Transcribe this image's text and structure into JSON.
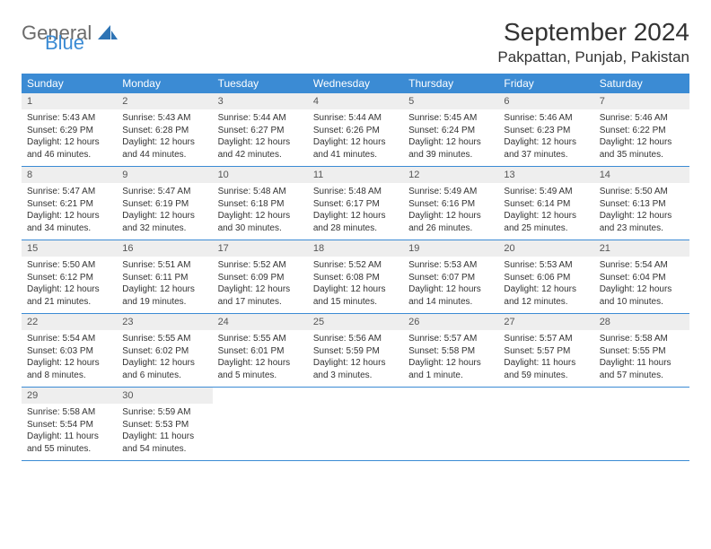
{
  "logo": {
    "general": "General",
    "blue": "Blue"
  },
  "title": "September 2024",
  "location": "Pakpattan, Punjab, Pakistan",
  "colors": {
    "header_bg": "#3b8bd4",
    "header_text": "#ffffff",
    "daynum_bg": "#eeeeee",
    "divider": "#3b8bd4",
    "logo_gray": "#6b6b6b",
    "logo_blue": "#3b8bd4"
  },
  "weekdays": [
    "Sunday",
    "Monday",
    "Tuesday",
    "Wednesday",
    "Thursday",
    "Friday",
    "Saturday"
  ],
  "weeks": [
    [
      {
        "n": "1",
        "sr": "Sunrise: 5:43 AM",
        "ss": "Sunset: 6:29 PM",
        "d1": "Daylight: 12 hours",
        "d2": "and 46 minutes."
      },
      {
        "n": "2",
        "sr": "Sunrise: 5:43 AM",
        "ss": "Sunset: 6:28 PM",
        "d1": "Daylight: 12 hours",
        "d2": "and 44 minutes."
      },
      {
        "n": "3",
        "sr": "Sunrise: 5:44 AM",
        "ss": "Sunset: 6:27 PM",
        "d1": "Daylight: 12 hours",
        "d2": "and 42 minutes."
      },
      {
        "n": "4",
        "sr": "Sunrise: 5:44 AM",
        "ss": "Sunset: 6:26 PM",
        "d1": "Daylight: 12 hours",
        "d2": "and 41 minutes."
      },
      {
        "n": "5",
        "sr": "Sunrise: 5:45 AM",
        "ss": "Sunset: 6:24 PM",
        "d1": "Daylight: 12 hours",
        "d2": "and 39 minutes."
      },
      {
        "n": "6",
        "sr": "Sunrise: 5:46 AM",
        "ss": "Sunset: 6:23 PM",
        "d1": "Daylight: 12 hours",
        "d2": "and 37 minutes."
      },
      {
        "n": "7",
        "sr": "Sunrise: 5:46 AM",
        "ss": "Sunset: 6:22 PM",
        "d1": "Daylight: 12 hours",
        "d2": "and 35 minutes."
      }
    ],
    [
      {
        "n": "8",
        "sr": "Sunrise: 5:47 AM",
        "ss": "Sunset: 6:21 PM",
        "d1": "Daylight: 12 hours",
        "d2": "and 34 minutes."
      },
      {
        "n": "9",
        "sr": "Sunrise: 5:47 AM",
        "ss": "Sunset: 6:19 PM",
        "d1": "Daylight: 12 hours",
        "d2": "and 32 minutes."
      },
      {
        "n": "10",
        "sr": "Sunrise: 5:48 AM",
        "ss": "Sunset: 6:18 PM",
        "d1": "Daylight: 12 hours",
        "d2": "and 30 minutes."
      },
      {
        "n": "11",
        "sr": "Sunrise: 5:48 AM",
        "ss": "Sunset: 6:17 PM",
        "d1": "Daylight: 12 hours",
        "d2": "and 28 minutes."
      },
      {
        "n": "12",
        "sr": "Sunrise: 5:49 AM",
        "ss": "Sunset: 6:16 PM",
        "d1": "Daylight: 12 hours",
        "d2": "and 26 minutes."
      },
      {
        "n": "13",
        "sr": "Sunrise: 5:49 AM",
        "ss": "Sunset: 6:14 PM",
        "d1": "Daylight: 12 hours",
        "d2": "and 25 minutes."
      },
      {
        "n": "14",
        "sr": "Sunrise: 5:50 AM",
        "ss": "Sunset: 6:13 PM",
        "d1": "Daylight: 12 hours",
        "d2": "and 23 minutes."
      }
    ],
    [
      {
        "n": "15",
        "sr": "Sunrise: 5:50 AM",
        "ss": "Sunset: 6:12 PM",
        "d1": "Daylight: 12 hours",
        "d2": "and 21 minutes."
      },
      {
        "n": "16",
        "sr": "Sunrise: 5:51 AM",
        "ss": "Sunset: 6:11 PM",
        "d1": "Daylight: 12 hours",
        "d2": "and 19 minutes."
      },
      {
        "n": "17",
        "sr": "Sunrise: 5:52 AM",
        "ss": "Sunset: 6:09 PM",
        "d1": "Daylight: 12 hours",
        "d2": "and 17 minutes."
      },
      {
        "n": "18",
        "sr": "Sunrise: 5:52 AM",
        "ss": "Sunset: 6:08 PM",
        "d1": "Daylight: 12 hours",
        "d2": "and 15 minutes."
      },
      {
        "n": "19",
        "sr": "Sunrise: 5:53 AM",
        "ss": "Sunset: 6:07 PM",
        "d1": "Daylight: 12 hours",
        "d2": "and 14 minutes."
      },
      {
        "n": "20",
        "sr": "Sunrise: 5:53 AM",
        "ss": "Sunset: 6:06 PM",
        "d1": "Daylight: 12 hours",
        "d2": "and 12 minutes."
      },
      {
        "n": "21",
        "sr": "Sunrise: 5:54 AM",
        "ss": "Sunset: 6:04 PM",
        "d1": "Daylight: 12 hours",
        "d2": "and 10 minutes."
      }
    ],
    [
      {
        "n": "22",
        "sr": "Sunrise: 5:54 AM",
        "ss": "Sunset: 6:03 PM",
        "d1": "Daylight: 12 hours",
        "d2": "and 8 minutes."
      },
      {
        "n": "23",
        "sr": "Sunrise: 5:55 AM",
        "ss": "Sunset: 6:02 PM",
        "d1": "Daylight: 12 hours",
        "d2": "and 6 minutes."
      },
      {
        "n": "24",
        "sr": "Sunrise: 5:55 AM",
        "ss": "Sunset: 6:01 PM",
        "d1": "Daylight: 12 hours",
        "d2": "and 5 minutes."
      },
      {
        "n": "25",
        "sr": "Sunrise: 5:56 AM",
        "ss": "Sunset: 5:59 PM",
        "d1": "Daylight: 12 hours",
        "d2": "and 3 minutes."
      },
      {
        "n": "26",
        "sr": "Sunrise: 5:57 AM",
        "ss": "Sunset: 5:58 PM",
        "d1": "Daylight: 12 hours",
        "d2": "and 1 minute."
      },
      {
        "n": "27",
        "sr": "Sunrise: 5:57 AM",
        "ss": "Sunset: 5:57 PM",
        "d1": "Daylight: 11 hours",
        "d2": "and 59 minutes."
      },
      {
        "n": "28",
        "sr": "Sunrise: 5:58 AM",
        "ss": "Sunset: 5:55 PM",
        "d1": "Daylight: 11 hours",
        "d2": "and 57 minutes."
      }
    ],
    [
      {
        "n": "29",
        "sr": "Sunrise: 5:58 AM",
        "ss": "Sunset: 5:54 PM",
        "d1": "Daylight: 11 hours",
        "d2": "and 55 minutes."
      },
      {
        "n": "30",
        "sr": "Sunrise: 5:59 AM",
        "ss": "Sunset: 5:53 PM",
        "d1": "Daylight: 11 hours",
        "d2": "and 54 minutes."
      },
      null,
      null,
      null,
      null,
      null
    ]
  ]
}
